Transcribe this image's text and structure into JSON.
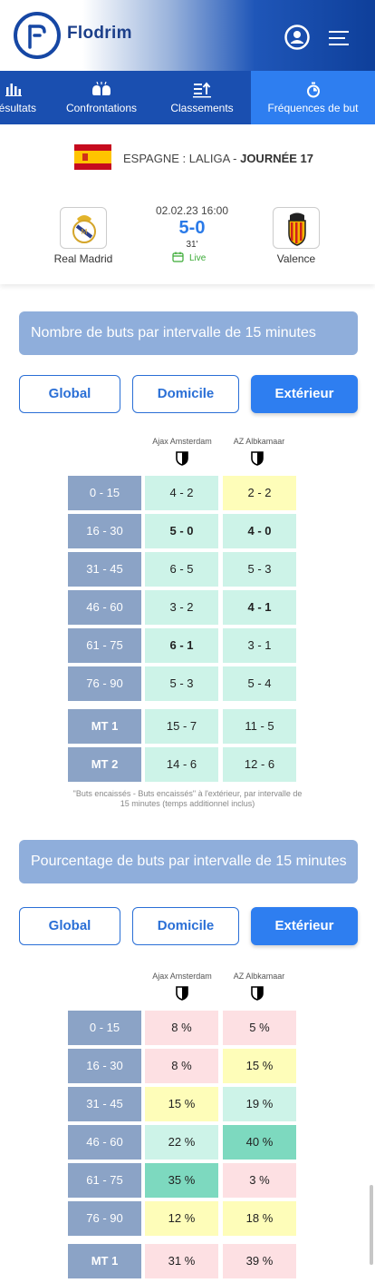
{
  "app": {
    "brand": "Flodrim"
  },
  "tabs": [
    {
      "label": "Résultats",
      "icon": "bar-chart-icon"
    },
    {
      "label": "Confrontations",
      "icon": "boxing-gloves-icon"
    },
    {
      "label": "Classements",
      "icon": "sort-icon"
    },
    {
      "label": "Fréquences de but",
      "icon": "stopwatch-icon"
    }
  ],
  "match": {
    "league": "ESPAGNE : LALIGA - ",
    "matchday": "JOURNÉE 17",
    "datetime": "02.02.23  16:00",
    "score": "5-0",
    "minute": "31'",
    "status": "Live",
    "home": "Real Madrid",
    "away": "Valence"
  },
  "colors": {
    "accent": "#2e7ef0",
    "navy": "#1a4fb0",
    "label": "#8ba3c6",
    "green": "#cdf3e8",
    "yellow": "#fefdb9",
    "pink": "#fde0e3",
    "teal": "#7dd9bf"
  },
  "section1": {
    "title": "Nombre de buts par intervalle de 15 minutes",
    "filters": [
      "Global",
      "Domicile",
      "Extérieur"
    ],
    "team1": "Ajax Amsterdam",
    "team2": "AZ Albkamaar",
    "rows": [
      {
        "label": "0 - 15",
        "v1": "4 - 2",
        "v2": "2 - 2"
      },
      {
        "label": "16 - 30",
        "v1": "5 - 0",
        "v2": "4 - 0"
      },
      {
        "label": "31 - 45",
        "v1": "6 - 5",
        "v2": "5 - 3"
      },
      {
        "label": "46 - 60",
        "v1": "3 - 2",
        "v2": "4 - 1"
      },
      {
        "label": "61 - 75",
        "v1": "6 - 1",
        "v2": "3 - 1"
      },
      {
        "label": "76 - 90",
        "v1": "5 - 3",
        "v2": "5 - 4"
      },
      {
        "label": "MT 1",
        "v1": "15 - 7",
        "v2": "11 - 5"
      },
      {
        "label": "MT 2",
        "v1": "14 - 6",
        "v2": "12 - 6"
      }
    ],
    "footnote": "\"Buts encaissés - Buts encaissés\" à l'extérieur, par intervalle de 15 minutes (temps additionnel inclus)"
  },
  "section2": {
    "title": "Pourcentage de buts par intervalle de 15 minutes",
    "filters": [
      "Global",
      "Domicile",
      "Extérieur"
    ],
    "team1": "Ajax Amsterdam",
    "team2": "AZ Albkamaar",
    "rows": [
      {
        "label": "0 - 15",
        "v1": "8 %",
        "v2": "5 %"
      },
      {
        "label": "16 - 30",
        "v1": "8 %",
        "v2": "15 %"
      },
      {
        "label": "31 - 45",
        "v1": "15 %",
        "v2": "19 %"
      },
      {
        "label": "46 - 60",
        "v1": "22 %",
        "v2": "40 %"
      },
      {
        "label": "61 - 75",
        "v1": "35 %",
        "v2": "3 %"
      },
      {
        "label": "76 - 90",
        "v1": "12 %",
        "v2": "18 %"
      },
      {
        "label": "MT 1",
        "v1": "31 %",
        "v2": "39 %"
      }
    ]
  }
}
